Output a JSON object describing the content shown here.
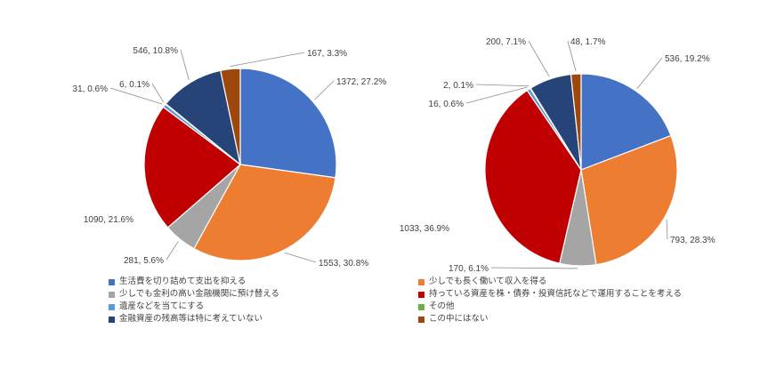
{
  "page": {
    "background": "#FFFFFF"
  },
  "styles": {
    "label_color": "#404040",
    "leader_color": "#8C8C8C",
    "slice_border": "#FFFFFF"
  },
  "categories": [
    {
      "label": "生活費を切り詰めて支出を抑える",
      "color": "#4472C4"
    },
    {
      "label": "少しでも長く働いて収入を得る",
      "color": "#ED7D31"
    },
    {
      "label": "少しでも金利の高い金融機関に預け替える",
      "color": "#A5A5A5"
    },
    {
      "label": "持っている資産を株・債券・投資信託などで運用することを考える",
      "color": "#C00000"
    },
    {
      "label": "遺産などを当てにする",
      "color": "#5B9BD5"
    },
    {
      "label": "その他",
      "color": "#70AD47"
    },
    {
      "label": "金融資産の残高等は特に考えていない",
      "color": "#264478"
    },
    {
      "label": "この中にはない",
      "color": "#9E480E"
    }
  ],
  "chart_data": [
    {
      "type": "pie",
      "name": "pie-left",
      "title": "",
      "legend_position": "bottom",
      "categories": [
        "生活費を切り詰めて支出を抑える",
        "少しでも長く働いて収入を得る",
        "少しでも金利の高い金融機関に預け替える",
        "持っている資産を株・債券・投資信託などで運用することを考える",
        "遺産などを当てにする",
        "その他",
        "金融資産の残高等は特に考えていない",
        "この中にはない"
      ],
      "values": [
        1372,
        1553,
        281,
        1090,
        31,
        6,
        546,
        167
      ],
      "percents": [
        27.2,
        30.8,
        5.6,
        21.6,
        0.6,
        0.1,
        10.8,
        3.3
      ],
      "data_labels": [
        "1372, 27.2%",
        "1553, 30.8%",
        "281, 5.6%",
        "1090, 21.6%",
        "31, 0.6%",
        "6, 0.1%",
        "546, 10.8%",
        "167, 3.3%"
      ]
    },
    {
      "type": "pie",
      "name": "pie-right",
      "title": "",
      "legend_position": "bottom",
      "categories": [
        "生活費を切り詰めて支出を抑える",
        "少しでも長く働いて収入を得る",
        "少しでも金利の高い金融機関に預け替える",
        "持っている資産を株・債券・投資信託などで運用することを考える",
        "遺産などを当てにする",
        "その他",
        "金融資産の残高等は特に考えていない",
        "この中にはない"
      ],
      "values": [
        536,
        793,
        170,
        1033,
        16,
        2,
        200,
        48
      ],
      "percents": [
        19.2,
        28.3,
        6.1,
        36.9,
        0.6,
        0.1,
        7.1,
        1.7
      ],
      "data_labels": [
        "536, 19.2%",
        "793, 28.3%",
        "170, 6.1%",
        "1033, 36.9%",
        "16, 0.6%",
        "2, 0.1%",
        "200, 7.1%",
        "48, 1.7%"
      ]
    }
  ]
}
